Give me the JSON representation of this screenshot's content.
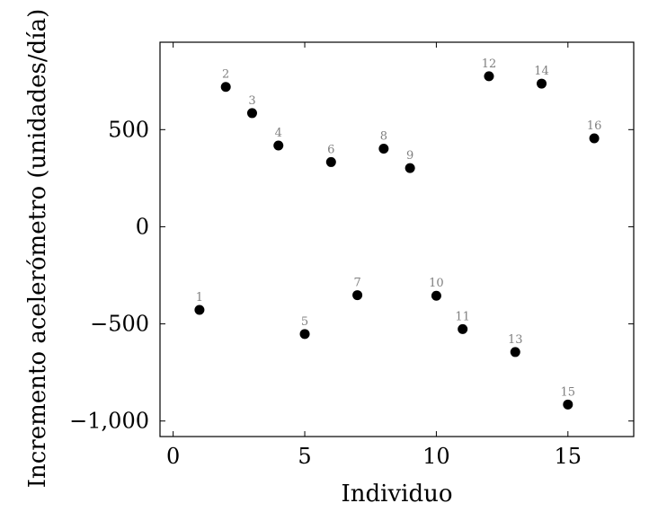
{
  "chart_data": {
    "type": "scatter",
    "xlabel": "Individuo",
    "ylabel": "Incremento acelerómetro (unidades/día)",
    "xlim": [
      -0.5,
      17.5
    ],
    "ylim": [
      -1080,
      950
    ],
    "xticks": [
      0,
      5,
      10,
      15
    ],
    "xtick_labels": [
      "0",
      "5",
      "10",
      "15"
    ],
    "yticks": [
      -1000,
      -500,
      0,
      500
    ],
    "ytick_labels": [
      "−1,000",
      "−500",
      "0",
      "500"
    ],
    "grid": false,
    "points": [
      {
        "x": 1,
        "y": -428,
        "label": "1"
      },
      {
        "x": 2,
        "y": 720,
        "label": "2"
      },
      {
        "x": 3,
        "y": 585,
        "label": "3"
      },
      {
        "x": 4,
        "y": 418,
        "label": "4"
      },
      {
        "x": 5,
        "y": -552,
        "label": "5"
      },
      {
        "x": 6,
        "y": 333,
        "label": "6"
      },
      {
        "x": 7,
        "y": -352,
        "label": "7"
      },
      {
        "x": 8,
        "y": 402,
        "label": "8"
      },
      {
        "x": 9,
        "y": 302,
        "label": "9"
      },
      {
        "x": 10,
        "y": -355,
        "label": "10"
      },
      {
        "x": 11,
        "y": -527,
        "label": "11"
      },
      {
        "x": 12,
        "y": 775,
        "label": "12"
      },
      {
        "x": 13,
        "y": -645,
        "label": "13"
      },
      {
        "x": 14,
        "y": 737,
        "label": "14"
      },
      {
        "x": 15,
        "y": -915,
        "label": "15"
      },
      {
        "x": 16,
        "y": 455,
        "label": "16"
      }
    ],
    "marker_color": "#000000",
    "label_color": "#808080"
  }
}
